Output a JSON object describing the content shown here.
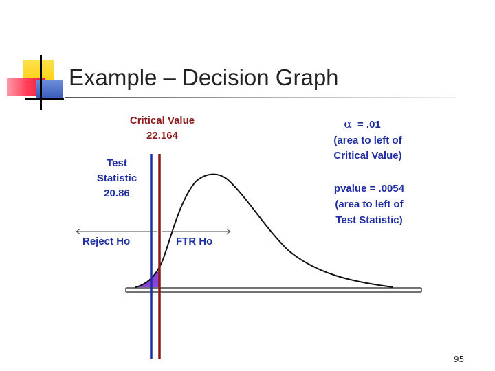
{
  "slide": {
    "title": "Example – Decision Graph",
    "page_number": "95"
  },
  "graph": {
    "critical_value": {
      "label": "Critical Value",
      "value": "22.164",
      "color": "#8b1a1a"
    },
    "test_statistic": {
      "line1": "Test",
      "line2": "Statistic",
      "value": "20.86",
      "color": "#1f2ea0"
    },
    "alpha": {
      "symbol": "α",
      "text": "= .01",
      "line2": "(area to left of",
      "line3": "Critical Value)"
    },
    "pvalue": {
      "line1": "pvalue = .0054",
      "line2": "(area to left of",
      "line3": "Test Statistic)"
    },
    "regions": {
      "reject": "Reject Ho",
      "ftr": "FTR Ho"
    },
    "colors": {
      "label_text": "#1f2ea0",
      "critical_line": "#8b1a1a",
      "test_line": "#1c2fa8",
      "shaded_tail": "#8a44d8"
    }
  }
}
